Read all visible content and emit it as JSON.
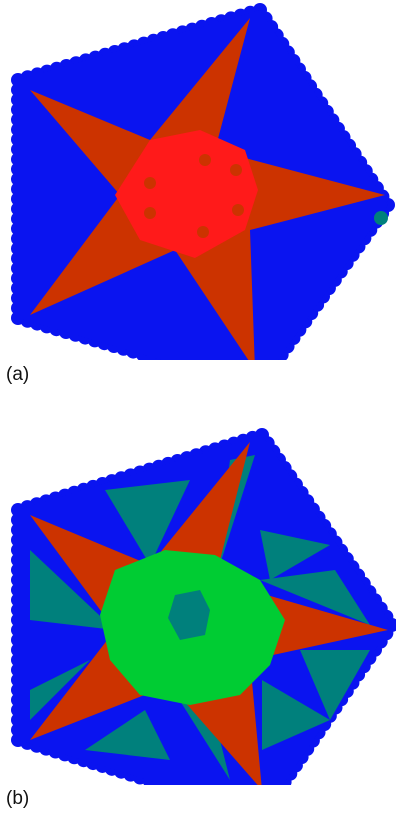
{
  "panels": [
    {
      "label": "(a)"
    },
    {
      "label": "(b)"
    }
  ],
  "colors": {
    "blue": "#0a14f0",
    "star": "#cc3300",
    "core_a": "#ff1a1a",
    "teal": "#00807c",
    "green": "#00cc33",
    "background": "#ffffff"
  }
}
